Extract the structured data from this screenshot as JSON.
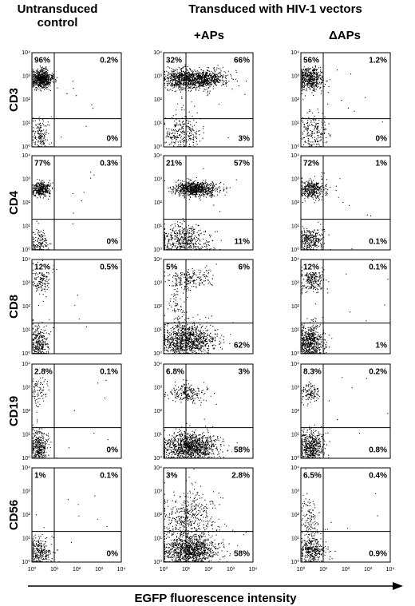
{
  "header": {
    "left_title_line1": "Untransduced",
    "left_title_line2": "control",
    "group_title": "Transduced with HIV-1 vectors",
    "columns": [
      "+APs",
      "ΔAPs"
    ]
  },
  "rows": [
    {
      "label": "CD3",
      "panels": [
        {
          "ul": "96%",
          "ur": "0.2%",
          "lr": "0%"
        },
        {
          "ul": "32%",
          "ur": "66%",
          "lr": "3%"
        },
        {
          "ul": "56%",
          "ur": "1.2%",
          "lr": "0%"
        }
      ]
    },
    {
      "label": "CD4",
      "panels": [
        {
          "ul": "77%",
          "ur": "0.3%",
          "lr": "0%"
        },
        {
          "ul": "21%",
          "ur": "57%",
          "lr": "11%"
        },
        {
          "ul": "72%",
          "ur": "1%",
          "lr": "0.1%"
        }
      ]
    },
    {
      "label": "CD8",
      "panels": [
        {
          "ul": "12%",
          "ur": "0.5%"
        },
        {
          "ul": "5%",
          "ur": "6%",
          "lr": "62%"
        },
        {
          "ul": "12%",
          "ur": "0.1%",
          "lr": "1%"
        }
      ]
    },
    {
      "label": "CD19",
      "panels": [
        {
          "ul": "2.8%",
          "ur": "0.1%",
          "lr": "0%"
        },
        {
          "ul": "6.8%",
          "ur": "3%",
          "lr": "58%"
        },
        {
          "ul": "8.3%",
          "ur": "0.2%",
          "lr": "0.8%"
        }
      ]
    },
    {
      "label": "CD56",
      "panels": [
        {
          "ul": "1%",
          "ur": "0.1%",
          "lr": "0%"
        },
        {
          "ul": "3%",
          "ur": "2.8%",
          "lr": "58%"
        },
        {
          "ul": "6.5%",
          "ur": "0.4%",
          "lr": "0.9%"
        }
      ]
    }
  ],
  "axis_ticks": [
    "10⁰",
    "10¹",
    "10²",
    "10³",
    "10⁴"
  ],
  "x_axis_label": "EGFP fluorescence intensity"
}
